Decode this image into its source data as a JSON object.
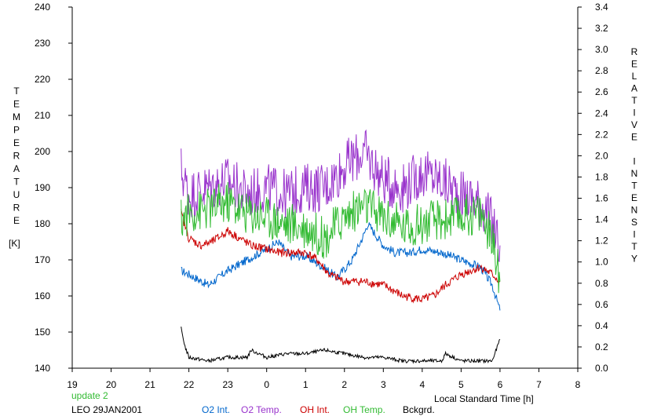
{
  "chart_data": {
    "type": "line",
    "title": "",
    "xlabel": "Local Standard Time [h]",
    "ylabel_left": "TEMPERATURE",
    "ylabel_left_unit": "[K]",
    "ylabel_right": "RELATIVE INTENSITY",
    "x_ticks": [
      "19",
      "20",
      "21",
      "22",
      "23",
      "0",
      "1",
      "2",
      "3",
      "4",
      "5",
      "6",
      "7",
      "8"
    ],
    "xlim": [
      19,
      32
    ],
    "ylim_left": [
      140,
      240
    ],
    "ylim_right": [
      0.0,
      3.4
    ],
    "y_left_ticks": [
      "140",
      "150",
      "160",
      "170",
      "180",
      "190",
      "200",
      "210",
      "220",
      "230",
      "240"
    ],
    "y_right_ticks": [
      "0.0",
      "0.2",
      "0.4",
      "0.6",
      "0.8",
      "1.0",
      "1.2",
      "1.4",
      "1.6",
      "1.8",
      "2.0",
      "2.2",
      "2.4",
      "2.6",
      "2.8",
      "3.0",
      "3.2",
      "3.4"
    ],
    "grid": false,
    "legend_position": "bottom",
    "series": [
      {
        "name": "O2 Int.",
        "color": "#0066cc",
        "axis": "left",
        "x": [
          21.8,
          22.0,
          22.5,
          23.0,
          23.5,
          24.0,
          24.3,
          24.6,
          25.0,
          25.3,
          25.6,
          25.8,
          26.2,
          26.5,
          26.6,
          26.8,
          27.0,
          27.3,
          27.7,
          28.0,
          28.5,
          29.0,
          29.5,
          29.8,
          30.0
        ],
        "y": [
          167,
          166,
          163,
          167,
          170,
          173,
          175,
          171,
          171,
          169,
          167,
          165,
          170,
          177,
          180,
          177,
          174,
          172,
          172,
          173,
          172,
          170,
          168,
          163,
          156
        ]
      },
      {
        "name": "O2 Temp.",
        "color": "#9933cc",
        "axis": "left",
        "x": [
          21.8,
          22.0,
          22.5,
          23.0,
          23.5,
          24.0,
          24.5,
          25.0,
          25.5,
          26.0,
          26.5,
          27.0,
          27.5,
          28.0,
          28.5,
          29.0,
          29.5,
          29.8,
          30.0
        ],
        "y": [
          195,
          188,
          190,
          192,
          188,
          190,
          188,
          190,
          190,
          196,
          200,
          192,
          190,
          194,
          192,
          188,
          186,
          180,
          174
        ]
      },
      {
        "name": "OH Int.",
        "color": "#cc0000",
        "axis": "left",
        "x": [
          21.8,
          22.0,
          22.3,
          22.6,
          23.0,
          23.3,
          23.6,
          24.0,
          24.3,
          24.6,
          25.0,
          25.3,
          25.6,
          26.0,
          26.5,
          27.0,
          27.5,
          28.0,
          28.3,
          28.6,
          29.0,
          29.5,
          29.8,
          30.0
        ],
        "y": [
          183,
          176,
          174,
          175,
          178,
          176,
          174,
          173,
          172,
          172,
          172,
          170,
          166,
          164,
          164,
          163,
          160,
          159,
          160,
          163,
          166,
          168,
          166,
          164
        ]
      },
      {
        "name": "OH Temp.",
        "color": "#33bb33",
        "axis": "left",
        "x": [
          21.8,
          22.0,
          22.5,
          23.0,
          23.5,
          24.0,
          24.5,
          25.0,
          25.5,
          26.0,
          26.5,
          27.0,
          27.5,
          28.0,
          28.5,
          29.0,
          29.5,
          29.8,
          30.0
        ],
        "y": [
          181,
          183,
          184,
          186,
          183,
          182,
          180,
          179,
          176,
          182,
          185,
          182,
          179,
          180,
          181,
          182,
          183,
          176,
          164
        ]
      },
      {
        "name": "Bckgrd.",
        "color": "#000000",
        "axis": "left",
        "x": [
          21.8,
          21.9,
          22.0,
          22.5,
          23.0,
          23.5,
          23.6,
          24.0,
          24.5,
          25.0,
          25.5,
          26.0,
          26.5,
          27.0,
          27.5,
          28.0,
          28.5,
          28.6,
          29.0,
          29.5,
          29.8,
          30.0
        ],
        "y": [
          151,
          146,
          143,
          142,
          143,
          143,
          145,
          143,
          144,
          144,
          145,
          144,
          143,
          143,
          142,
          142,
          142,
          144,
          142,
          142,
          142,
          148
        ]
      }
    ],
    "update_text": "update 2",
    "station_text": "LEO 29JAN2001"
  }
}
